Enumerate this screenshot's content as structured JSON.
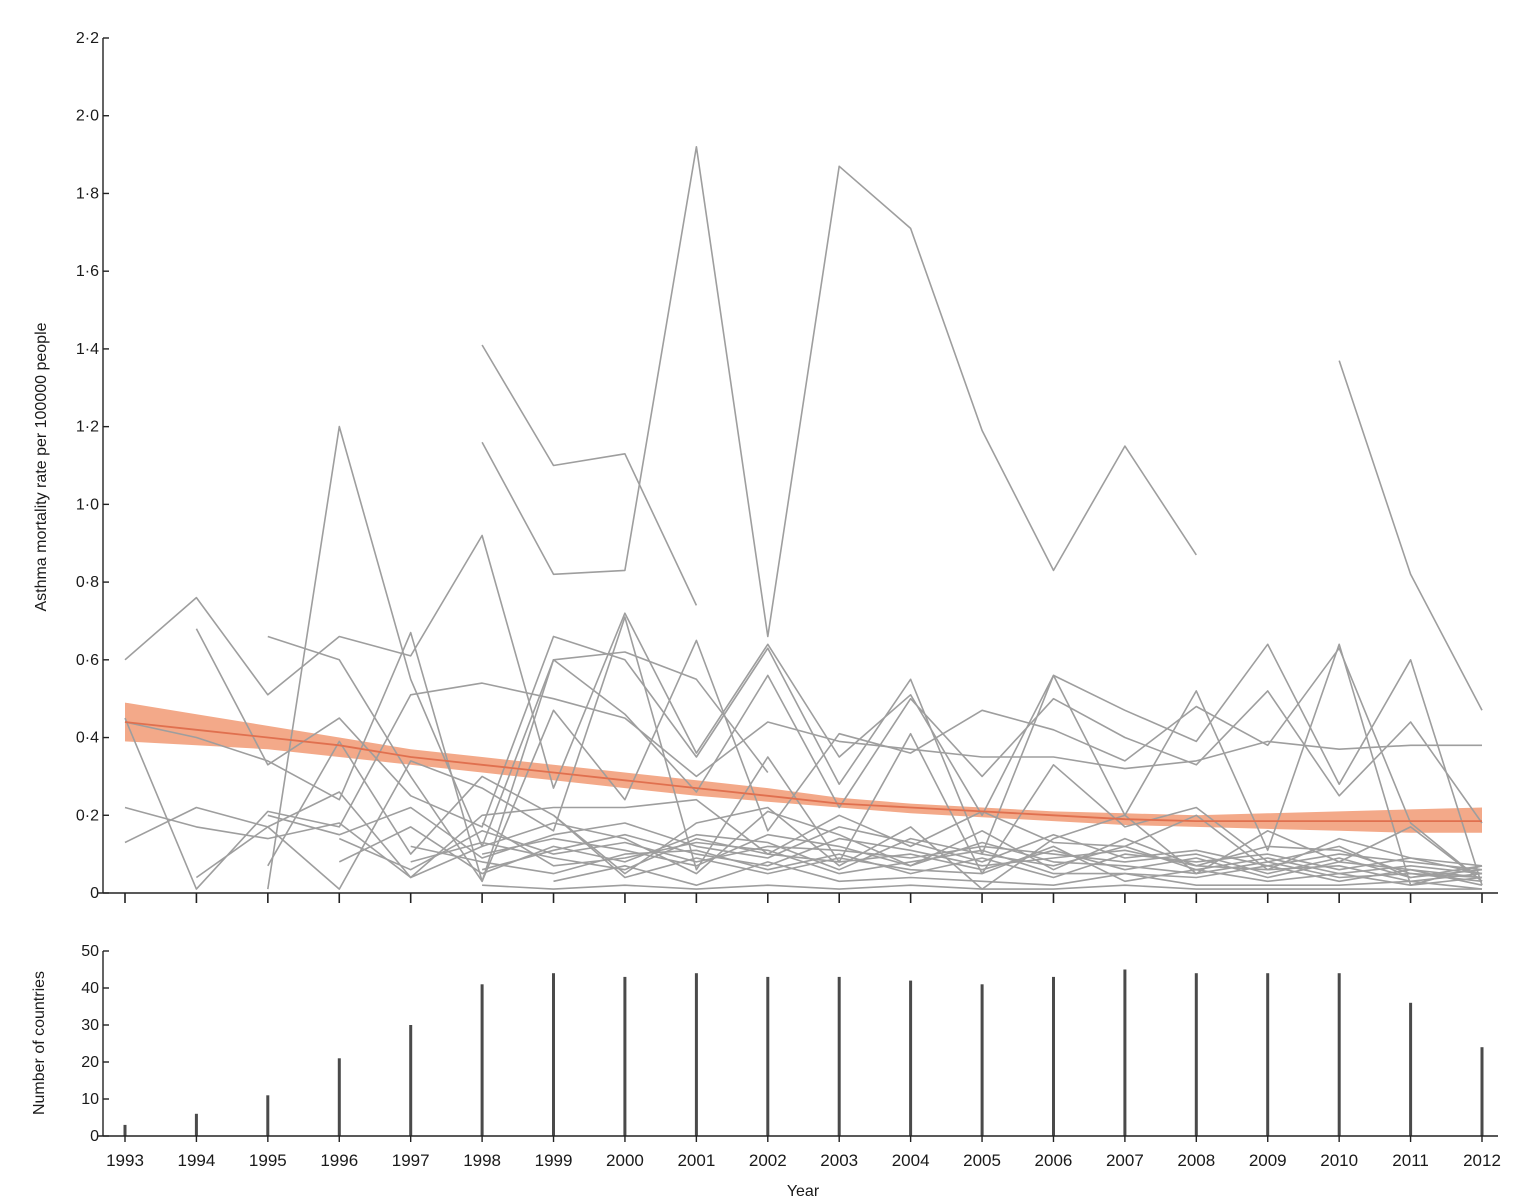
{
  "chart_data": [
    {
      "type": "line",
      "panel": "mortality-rate",
      "ylabel": "Asthma mortality rate per 100000 people",
      "ylim": [
        0,
        2.2
      ],
      "y_ticks": [
        0,
        0.2,
        0.4,
        0.6,
        0.8,
        1.0,
        1.2,
        1.4,
        1.6,
        1.8,
        2.0,
        2.2
      ],
      "y_tick_labels": [
        "0",
        "0·2",
        "0·4",
        "0·6",
        "0·8",
        "1·0",
        "1·2",
        "1·4",
        "1·6",
        "1·8",
        "2·0",
        "2·2"
      ],
      "x": [
        1993,
        1994,
        1995,
        1996,
        1997,
        1998,
        1999,
        2000,
        2001,
        2002,
        2003,
        2004,
        2005,
        2006,
        2007,
        2008,
        2009,
        2010,
        2011,
        2012
      ],
      "trend": {
        "x": [
          1993,
          1994,
          1995,
          1996,
          1997,
          1998,
          1999,
          2000,
          2001,
          2002,
          2003,
          2004,
          2005,
          2006,
          2007,
          2008,
          2009,
          2010,
          2011,
          2012
        ],
        "fit": [
          0.44,
          0.42,
          0.4,
          0.38,
          0.35,
          0.33,
          0.31,
          0.29,
          0.27,
          0.25,
          0.23,
          0.22,
          0.21,
          0.2,
          0.19,
          0.185,
          0.185,
          0.185,
          0.185,
          0.185
        ],
        "lower": [
          0.39,
          0.38,
          0.37,
          0.35,
          0.33,
          0.31,
          0.29,
          0.27,
          0.25,
          0.235,
          0.22,
          0.205,
          0.195,
          0.185,
          0.175,
          0.17,
          0.165,
          0.16,
          0.155,
          0.155
        ],
        "upper": [
          0.49,
          0.46,
          0.43,
          0.4,
          0.37,
          0.35,
          0.33,
          0.31,
          0.29,
          0.27,
          0.245,
          0.23,
          0.22,
          0.21,
          0.205,
          0.2,
          0.205,
          0.21,
          0.215,
          0.22
        ],
        "line_color": "#e0704f",
        "band_color": "#f2a07c"
      },
      "series_color": "#9e9e9e",
      "series": [
        {
          "values": [
            0.6,
            0.76,
            0.51,
            0.66,
            0.61,
            0.92,
            0.27,
            0.72,
            0.36,
            0.64,
            0.35,
            0.51,
            0.2,
            0.56,
            0.2,
            0.52,
            0.11,
            0.64,
            0.02,
            0.07
          ]
        },
        {
          "values": [
            null,
            null,
            null,
            null,
            null,
            1.41,
            1.1,
            1.13,
            0.74,
            null,
            null,
            null,
            null,
            null,
            null,
            null,
            null,
            null,
            null,
            null
          ]
        },
        {
          "values": [
            null,
            null,
            null,
            null,
            null,
            1.16,
            0.82,
            0.83,
            1.92,
            0.66,
            1.87,
            1.71,
            1.19,
            0.83,
            1.15,
            0.87,
            null,
            null,
            null,
            null
          ]
        },
        {
          "values": [
            null,
            null,
            null,
            null,
            null,
            null,
            null,
            null,
            null,
            null,
            null,
            null,
            null,
            null,
            null,
            null,
            null,
            1.37,
            0.82,
            0.47
          ]
        },
        {
          "values": [
            null,
            null,
            0.01,
            1.2,
            0.55,
            0.12,
            0.6,
            0.62,
            0.55,
            0.31,
            null,
            null,
            null,
            null,
            null,
            null,
            null,
            null,
            null,
            null
          ]
        },
        {
          "values": [
            null,
            0.68,
            0.33,
            0.45,
            0.25,
            0.17,
            0.66,
            0.6,
            0.35,
            0.63,
            0.28,
            0.55,
            0.1,
            0.56,
            0.47,
            0.39,
            0.64,
            0.28,
            0.6,
            0.02
          ]
        },
        {
          "values": [
            null,
            null,
            0.66,
            0.6,
            0.3,
            0.03,
            0.6,
            0.46,
            0.26,
            0.56,
            0.22,
            0.5,
            0.3,
            0.5,
            0.4,
            0.33,
            0.52,
            0.25,
            0.44,
            0.18
          ]
        },
        {
          "values": [
            0.44,
            0.4,
            0.34,
            0.24,
            0.67,
            0.03,
            0.47,
            0.24,
            0.65,
            0.16,
            0.41,
            0.36,
            0.47,
            0.42,
            0.34,
            0.48,
            0.38,
            0.63,
            0.18,
            0.03
          ]
        },
        {
          "values": [
            0.45,
            0.01,
            0.21,
            0.17,
            0.51,
            0.54,
            0.5,
            0.45,
            0.3,
            0.44,
            0.39,
            0.37,
            0.35,
            0.35,
            0.32,
            0.34,
            0.39,
            0.37,
            0.38,
            0.38
          ]
        },
        {
          "values": [
            0.13,
            0.22,
            0.17,
            0.01,
            0.34,
            0.27,
            0.16,
            0.71,
            0.06,
            0.35,
            0.08,
            0.41,
            0.05,
            0.33,
            0.17,
            0.22,
            0.08,
            0.12,
            0.04,
            0.07
          ]
        },
        {
          "values": [
            null,
            0.04,
            0.17,
            0.26,
            0.04,
            0.2,
            0.22,
            0.22,
            0.24,
            0.1,
            0.2,
            0.12,
            0.21,
            0.13,
            0.12,
            0.2,
            0.06,
            0.14,
            0.09,
            0.05
          ]
        },
        {
          "values": [
            null,
            null,
            0.07,
            0.39,
            0.1,
            0.3,
            0.2,
            0.05,
            0.18,
            0.22,
            0.07,
            0.17,
            0.01,
            0.14,
            0.2,
            0.05,
            0.16,
            0.08,
            0.17,
            0.03
          ]
        },
        {
          "values": [
            0.22,
            0.17,
            0.14,
            0.18,
            0.04,
            0.12,
            0.18,
            0.14,
            0.05,
            0.21,
            0.15,
            0.07,
            0.16,
            0.06,
            0.14,
            0.07,
            0.12,
            0.11,
            0.05,
            0.04
          ]
        },
        {
          "values": [
            null,
            null,
            0.2,
            0.15,
            0.22,
            0.09,
            0.15,
            0.18,
            0.12,
            0.09,
            0.17,
            0.13,
            0.08,
            0.15,
            0.09,
            0.11,
            0.07,
            0.1,
            0.08,
            0.06
          ]
        },
        {
          "values": [
            null,
            null,
            null,
            0.08,
            0.17,
            0.05,
            0.12,
            0.08,
            0.15,
            0.13,
            0.06,
            0.14,
            0.1,
            0.07,
            0.12,
            0.06,
            0.09,
            0.05,
            0.07,
            0.05
          ]
        },
        {
          "values": [
            null,
            null,
            null,
            0.14,
            0.06,
            0.16,
            0.1,
            0.13,
            0.08,
            0.12,
            0.11,
            0.09,
            0.12,
            0.1,
            0.08,
            0.1,
            0.05,
            0.09,
            0.04,
            0.06
          ]
        },
        {
          "values": [
            null,
            null,
            null,
            null,
            0.12,
            0.08,
            0.05,
            0.1,
            0.11,
            0.06,
            0.1,
            0.05,
            0.09,
            0.04,
            0.1,
            0.08,
            0.1,
            0.06,
            0.09,
            0.07
          ]
        },
        {
          "values": [
            null,
            null,
            null,
            null,
            0.08,
            0.13,
            0.09,
            0.06,
            0.14,
            0.1,
            0.08,
            0.1,
            0.06,
            0.11,
            0.06,
            0.09,
            0.04,
            0.08,
            0.06,
            0.04
          ]
        },
        {
          "values": [
            null,
            null,
            null,
            null,
            null,
            0.1,
            0.14,
            0.11,
            0.07,
            0.15,
            0.12,
            0.07,
            0.13,
            0.08,
            0.07,
            0.05,
            0.08,
            0.04,
            0.05,
            0.03
          ]
        },
        {
          "values": [
            null,
            null,
            null,
            null,
            null,
            0.06,
            0.11,
            0.15,
            0.1,
            0.07,
            0.14,
            0.11,
            0.07,
            0.09,
            0.11,
            0.07,
            0.06,
            0.07,
            0.03,
            0.05
          ]
        },
        {
          "values": [
            null,
            null,
            null,
            null,
            null,
            0.18,
            0.07,
            0.09,
            0.13,
            0.11,
            0.05,
            0.08,
            0.11,
            0.05,
            0.05,
            0.04,
            0.07,
            0.03,
            0.06,
            0.02
          ]
        },
        {
          "values": [
            null,
            null,
            null,
            null,
            null,
            null,
            0.2,
            0.04,
            0.09,
            0.05,
            0.09,
            0.06,
            0.05,
            0.12,
            0.03,
            0.06,
            0.03,
            0.05,
            0.02,
            0.04
          ]
        },
        {
          "values": [
            null,
            null,
            null,
            null,
            null,
            null,
            0.03,
            0.07,
            0.02,
            0.08,
            0.03,
            0.04,
            0.03,
            0.02,
            0.05,
            0.02,
            0.02,
            0.02,
            0.03,
            0.01
          ]
        },
        {
          "values": [
            null,
            null,
            null,
            null,
            null,
            0.02,
            0.01,
            0.02,
            0.01,
            0.02,
            0.01,
            0.02,
            0.01,
            0.01,
            0.02,
            0.01,
            0.01,
            0.01,
            0.01,
            0.01
          ]
        }
      ]
    },
    {
      "type": "bar",
      "panel": "country-count",
      "ylabel": "Number of countries",
      "xlabel": "Year",
      "ylim": [
        0,
        50
      ],
      "y_ticks": [
        0,
        10,
        20,
        30,
        40,
        50
      ],
      "y_tick_labels": [
        "0",
        "10",
        "20",
        "30",
        "40",
        "50"
      ],
      "categories": [
        1993,
        1994,
        1995,
        1996,
        1997,
        1998,
        1999,
        2000,
        2001,
        2002,
        2003,
        2004,
        2005,
        2006,
        2007,
        2008,
        2009,
        2010,
        2011,
        2012
      ],
      "x_tick_labels": [
        "1993",
        "1994",
        "1995",
        "1996",
        "1997",
        "1998",
        "1999",
        "2000",
        "2001",
        "2002",
        "2003",
        "2004",
        "2005",
        "2006",
        "2007",
        "2008",
        "2009",
        "2010",
        "2011",
        "2012"
      ],
      "values": [
        3,
        6,
        11,
        21,
        30,
        41,
        44,
        43,
        44,
        43,
        43,
        42,
        41,
        43,
        45,
        44,
        44,
        44,
        36,
        24
      ],
      "bar_color": "#4a4a4a"
    }
  ]
}
